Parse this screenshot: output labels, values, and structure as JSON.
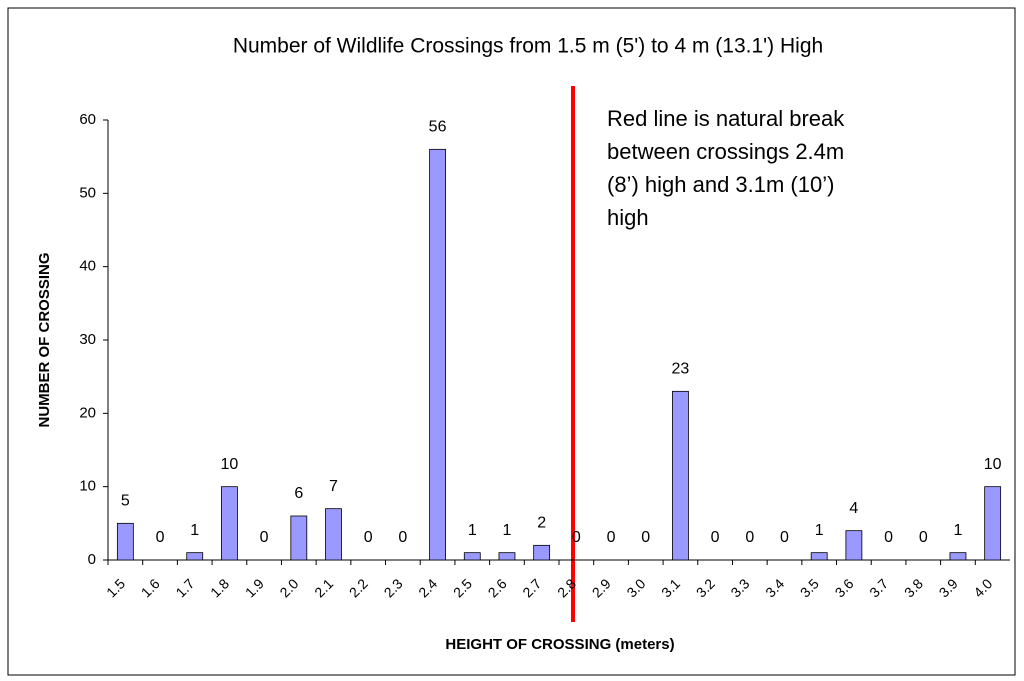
{
  "chart_data": {
    "type": "bar",
    "title": "Number of Wildlife Crossings from 1.5 m (5') to 4 m (13.1') High",
    "x_label": "HEIGHT OF CROSSING (meters)",
    "y_label": "NUMBER OF CROSSING",
    "annotation": [
      "Red line is natural break",
      "between crossings 2.4m",
      "(8’) high and 3.1m (10’)",
      "high"
    ],
    "categories": [
      "1.5",
      "1.6",
      "1.7",
      "1.8",
      "1.9",
      "2.0",
      "2.1",
      "2.2",
      "2.3",
      "2.4",
      "2.5",
      "2.6",
      "2.7",
      "2.8",
      "2.9",
      "3.0",
      "3.1",
      "3.2",
      "3.3",
      "3.4",
      "3.5",
      "3.6",
      "3.7",
      "3.8",
      "3.9",
      "4.0"
    ],
    "values": [
      5,
      0,
      1,
      10,
      0,
      6,
      7,
      0,
      0,
      56,
      1,
      1,
      2,
      0,
      0,
      0,
      23,
      0,
      0,
      0,
      1,
      4,
      0,
      0,
      1,
      10
    ],
    "color": "#9999ff",
    "ylim": [
      0,
      60
    ],
    "yticks": [
      0,
      10,
      20,
      30,
      40,
      50,
      60
    ],
    "grid": false
  }
}
